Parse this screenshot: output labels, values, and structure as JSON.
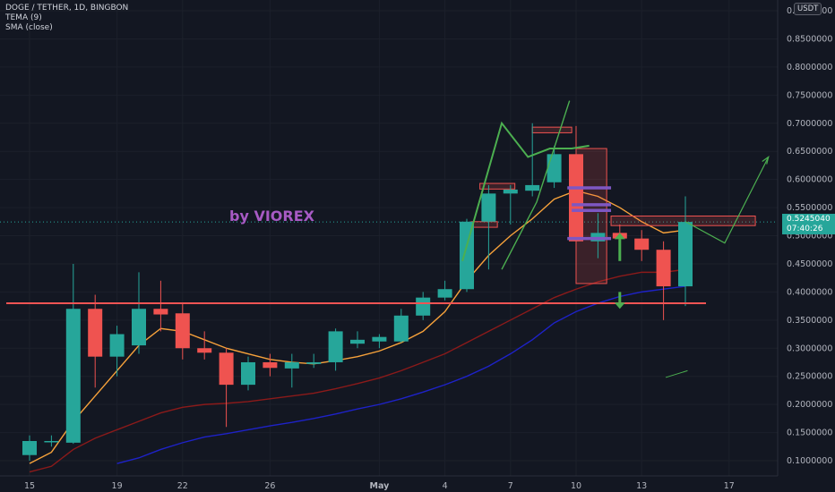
{
  "header": {
    "symbol_line": "DOGE / TETHER, 1D, BINGBON",
    "indicator_1": "TEMA (9)",
    "indicator_2": "SMA (close)",
    "currency_button": "USDT"
  },
  "watermark_text": "by VIOREX",
  "last_price": {
    "value": "0.5245040",
    "countdown": "07:40:26"
  },
  "colors": {
    "background": "#131722",
    "up_candle": "#26a69a",
    "down_candle": "#ef5350",
    "tema_line": "#f7a23b",
    "sma_dark_red": "#8b1a1a",
    "sma_blue": "#1e22c8",
    "support_line": "#f05454",
    "drawing_green": "#4caf50",
    "watermark": "#a75ac4"
  },
  "chart_data": {
    "type": "candlestick",
    "symbol": "DOGE / TETHER",
    "interval": "1D",
    "exchange": "BINGBON",
    "y_axis_ticks": [
      "0.9000000",
      "0.8500000",
      "0.8000000",
      "0.7500000",
      "0.7000000",
      "0.6500000",
      "0.6000000",
      "0.5500000",
      "0.5000000",
      "0.4500000",
      "0.4000000",
      "0.3500000",
      "0.3000000",
      "0.2500000",
      "0.2000000",
      "0.1500000",
      "0.1000000"
    ],
    "ylim": [
      0.075,
      0.91
    ],
    "x_axis_ticks": [
      {
        "label": "15",
        "day": 0
      },
      {
        "label": "19",
        "day": 4
      },
      {
        "label": "22",
        "day": 7
      },
      {
        "label": "26",
        "day": 11
      },
      {
        "label": "May",
        "day": 16
      },
      {
        "label": "4",
        "day": 19
      },
      {
        "label": "7",
        "day": 22
      },
      {
        "label": "10",
        "day": 25
      },
      {
        "label": "13",
        "day": 28
      },
      {
        "label": "17",
        "day": 32
      }
    ],
    "candles": [
      {
        "d": 0,
        "o": 0.11,
        "h": 0.145,
        "l": 0.1,
        "c": 0.135
      },
      {
        "d": 1,
        "o": 0.135,
        "h": 0.145,
        "l": 0.125,
        "c": 0.135
      },
      {
        "d": 2,
        "o": 0.132,
        "h": 0.45,
        "l": 0.13,
        "c": 0.37
      },
      {
        "d": 3,
        "o": 0.37,
        "h": 0.395,
        "l": 0.23,
        "c": 0.285
      },
      {
        "d": 4,
        "o": 0.285,
        "h": 0.34,
        "l": 0.25,
        "c": 0.325
      },
      {
        "d": 5,
        "o": 0.305,
        "h": 0.435,
        "l": 0.29,
        "c": 0.37
      },
      {
        "d": 6,
        "o": 0.37,
        "h": 0.42,
        "l": 0.33,
        "c": 0.36
      },
      {
        "d": 7,
        "o": 0.362,
        "h": 0.38,
        "l": 0.28,
        "c": 0.3
      },
      {
        "d": 8,
        "o": 0.3,
        "h": 0.33,
        "l": 0.28,
        "c": 0.292
      },
      {
        "d": 9,
        "o": 0.292,
        "h": 0.3,
        "l": 0.16,
        "c": 0.235
      },
      {
        "d": 10,
        "o": 0.235,
        "h": 0.285,
        "l": 0.225,
        "c": 0.275
      },
      {
        "d": 11,
        "o": 0.275,
        "h": 0.29,
        "l": 0.25,
        "c": 0.265
      },
      {
        "d": 12,
        "o": 0.264,
        "h": 0.29,
        "l": 0.23,
        "c": 0.275
      },
      {
        "d": 13,
        "o": 0.272,
        "h": 0.29,
        "l": 0.265,
        "c": 0.275
      },
      {
        "d": 14,
        "o": 0.275,
        "h": 0.335,
        "l": 0.26,
        "c": 0.33
      },
      {
        "d": 15,
        "o": 0.308,
        "h": 0.33,
        "l": 0.3,
        "c": 0.315
      },
      {
        "d": 16,
        "o": 0.312,
        "h": 0.325,
        "l": 0.3,
        "c": 0.32
      },
      {
        "d": 17,
        "o": 0.312,
        "h": 0.37,
        "l": 0.31,
        "c": 0.358
      },
      {
        "d": 18,
        "o": 0.358,
        "h": 0.4,
        "l": 0.35,
        "c": 0.39
      },
      {
        "d": 19,
        "o": 0.39,
        "h": 0.42,
        "l": 0.385,
        "c": 0.405
      },
      {
        "d": 20,
        "o": 0.405,
        "h": 0.53,
        "l": 0.4,
        "c": 0.525
      },
      {
        "d": 21,
        "o": 0.525,
        "h": 0.59,
        "l": 0.44,
        "c": 0.575
      },
      {
        "d": 22,
        "o": 0.575,
        "h": 0.59,
        "l": 0.52,
        "c": 0.582
      },
      {
        "d": 23,
        "o": 0.58,
        "h": 0.7,
        "l": 0.57,
        "c": 0.59
      },
      {
        "d": 24,
        "o": 0.595,
        "h": 0.66,
        "l": 0.585,
        "c": 0.645
      },
      {
        "d": 25,
        "o": 0.645,
        "h": 0.695,
        "l": 0.43,
        "c": 0.49
      },
      {
        "d": 26,
        "o": 0.49,
        "h": 0.54,
        "l": 0.46,
        "c": 0.505
      },
      {
        "d": 27,
        "o": 0.505,
        "h": 0.52,
        "l": 0.47,
        "c": 0.495
      },
      {
        "d": 28,
        "o": 0.495,
        "h": 0.51,
        "l": 0.455,
        "c": 0.475
      },
      {
        "d": 29,
        "o": 0.475,
        "h": 0.49,
        "l": 0.35,
        "c": 0.41
      },
      {
        "d": 30,
        "o": 0.41,
        "h": 0.57,
        "l": 0.375,
        "c": 0.5245
      }
    ],
    "series": [
      {
        "name": "TEMA (9)",
        "color": "#f7a23b",
        "points": [
          [
            0,
            0.095
          ],
          [
            1,
            0.115
          ],
          [
            2,
            0.17
          ],
          [
            3,
            0.215
          ],
          [
            4,
            0.26
          ],
          [
            5,
            0.305
          ],
          [
            6,
            0.335
          ],
          [
            7,
            0.33
          ],
          [
            8,
            0.315
          ],
          [
            9,
            0.3
          ],
          [
            10,
            0.29
          ],
          [
            11,
            0.28
          ],
          [
            12,
            0.275
          ],
          [
            13,
            0.272
          ],
          [
            14,
            0.278
          ],
          [
            15,
            0.285
          ],
          [
            16,
            0.295
          ],
          [
            17,
            0.31
          ],
          [
            18,
            0.33
          ],
          [
            19,
            0.365
          ],
          [
            20,
            0.42
          ],
          [
            21,
            0.465
          ],
          [
            22,
            0.5
          ],
          [
            23,
            0.53
          ],
          [
            24,
            0.565
          ],
          [
            25,
            0.58
          ],
          [
            26,
            0.57
          ],
          [
            27,
            0.55
          ],
          [
            28,
            0.525
          ],
          [
            29,
            0.505
          ],
          [
            30,
            0.51
          ]
        ]
      },
      {
        "name": "SMA (close)",
        "color": "#8b1a1a",
        "points": [
          [
            0,
            0.08
          ],
          [
            1,
            0.09
          ],
          [
            2,
            0.12
          ],
          [
            3,
            0.14
          ],
          [
            4,
            0.155
          ],
          [
            5,
            0.17
          ],
          [
            6,
            0.185
          ],
          [
            7,
            0.195
          ],
          [
            8,
            0.2
          ],
          [
            9,
            0.202
          ],
          [
            10,
            0.205
          ],
          [
            11,
            0.21
          ],
          [
            12,
            0.215
          ],
          [
            13,
            0.22
          ],
          [
            14,
            0.228
          ],
          [
            15,
            0.237
          ],
          [
            16,
            0.247
          ],
          [
            17,
            0.26
          ],
          [
            18,
            0.275
          ],
          [
            19,
            0.29
          ],
          [
            20,
            0.31
          ],
          [
            21,
            0.33
          ],
          [
            22,
            0.35
          ],
          [
            23,
            0.37
          ],
          [
            24,
            0.39
          ],
          [
            25,
            0.405
          ],
          [
            26,
            0.418
          ],
          [
            27,
            0.428
          ],
          [
            28,
            0.435
          ],
          [
            29,
            0.435
          ],
          [
            30,
            0.44
          ]
        ]
      },
      {
        "name": "",
        "color": "#1e22c8",
        "points": [
          [
            4,
            0.095
          ],
          [
            5,
            0.105
          ],
          [
            6,
            0.12
          ],
          [
            7,
            0.132
          ],
          [
            8,
            0.142
          ],
          [
            9,
            0.148
          ],
          [
            10,
            0.155
          ],
          [
            11,
            0.162
          ],
          [
            12,
            0.168
          ],
          [
            13,
            0.175
          ],
          [
            14,
            0.183
          ],
          [
            15,
            0.192
          ],
          [
            16,
            0.2
          ],
          [
            17,
            0.21
          ],
          [
            18,
            0.222
          ],
          [
            19,
            0.235
          ],
          [
            20,
            0.25
          ],
          [
            21,
            0.268
          ],
          [
            22,
            0.29
          ],
          [
            23,
            0.315
          ],
          [
            24,
            0.345
          ],
          [
            25,
            0.365
          ],
          [
            26,
            0.38
          ],
          [
            27,
            0.392
          ],
          [
            28,
            0.4
          ],
          [
            29,
            0.405
          ],
          [
            30,
            0.41
          ]
        ]
      }
    ],
    "support_level": 0.38,
    "last_price_level": 0.5245,
    "drawings": {
      "green_polyline": [
        [
          19.8,
          0.455
        ],
        [
          21.6,
          0.7
        ],
        [
          22.8,
          0.64
        ],
        [
          23.8,
          0.655
        ],
        [
          24.8,
          0.655
        ],
        [
          25.6,
          0.66
        ]
      ],
      "green_polyline_2": [
        [
          21.6,
          0.44
        ],
        [
          23.2,
          0.56
        ],
        [
          24.7,
          0.74
        ]
      ],
      "projection": [
        [
          30.0,
          0.525
        ],
        [
          31.8,
          0.487
        ],
        [
          33.8,
          0.64
        ]
      ],
      "red_boxes": [
        {
          "x0": 20.2,
          "x1": 21.4,
          "y0": 0.515,
          "y1": 0.525
        },
        {
          "x0": 20.6,
          "x1": 22.2,
          "y0": 0.583,
          "y1": 0.593
        },
        {
          "x0": 23.0,
          "x1": 24.8,
          "y0": 0.683,
          "y1": 0.693
        },
        {
          "x0": 25.0,
          "x1": 26.4,
          "y0": 0.415,
          "y1": 0.655
        },
        {
          "x0": 26.6,
          "x1": 33.2,
          "y0": 0.518,
          "y1": 0.535
        }
      ],
      "purple_marks": [
        {
          "x0": 24.6,
          "x1": 26.6,
          "y": 0.585
        },
        {
          "x0": 24.8,
          "x1": 26.6,
          "y": 0.555
        },
        {
          "x0": 24.8,
          "x1": 26.6,
          "y": 0.545
        },
        {
          "x0": 24.6,
          "x1": 26.6,
          "y": 0.495
        }
      ],
      "green_arrows": [
        {
          "x": 27.0,
          "y_from": 0.455,
          "y_to": 0.505
        },
        {
          "x": 27.0,
          "y_from": 0.4,
          "y_to": 0.37
        }
      ],
      "short_green": [
        [
          29.1,
          0.248
        ],
        [
          30.1,
          0.26
        ]
      ]
    }
  }
}
